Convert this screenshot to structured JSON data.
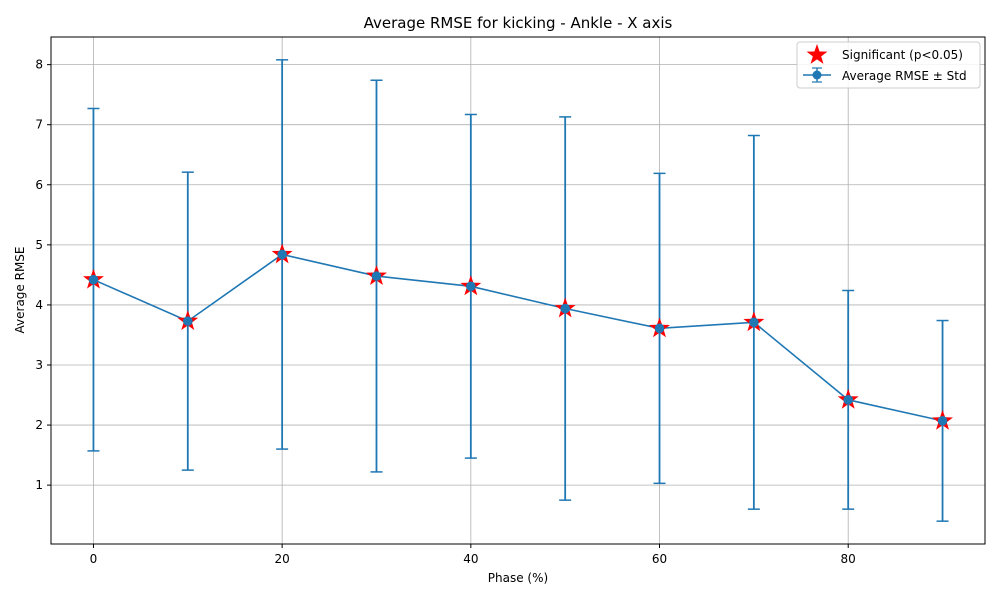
{
  "chart_data": {
    "type": "line",
    "title": "Average RMSE for kicking - Ankle - X axis",
    "xlabel": "Phase (%)",
    "ylabel": "Average RMSE",
    "x": [
      0,
      10,
      20,
      30,
      40,
      50,
      60,
      70,
      80,
      90
    ],
    "series": [
      {
        "name": "Average RMSE ± Std",
        "values": [
          4.42,
          3.73,
          4.84,
          4.48,
          4.31,
          3.94,
          3.61,
          3.71,
          2.42,
          2.07
        ],
        "std": [
          2.85,
          2.48,
          3.24,
          3.26,
          2.86,
          3.19,
          2.58,
          3.11,
          1.82,
          1.67
        ],
        "color": "#1f77b4"
      }
    ],
    "significant": {
      "name": "Significant (p<0.05)",
      "x": [
        0,
        10,
        20,
        30,
        40,
        50,
        60,
        70,
        80,
        90
      ],
      "color": "#ff0000"
    },
    "xticks": [
      0,
      20,
      40,
      60,
      80
    ],
    "yticks": [
      1,
      2,
      3,
      4,
      5,
      6,
      7,
      8
    ],
    "xlim": [
      -4.5,
      94.5
    ],
    "ylim": [
      0.02,
      8.46
    ],
    "grid": true,
    "legend_position": "top-right"
  }
}
